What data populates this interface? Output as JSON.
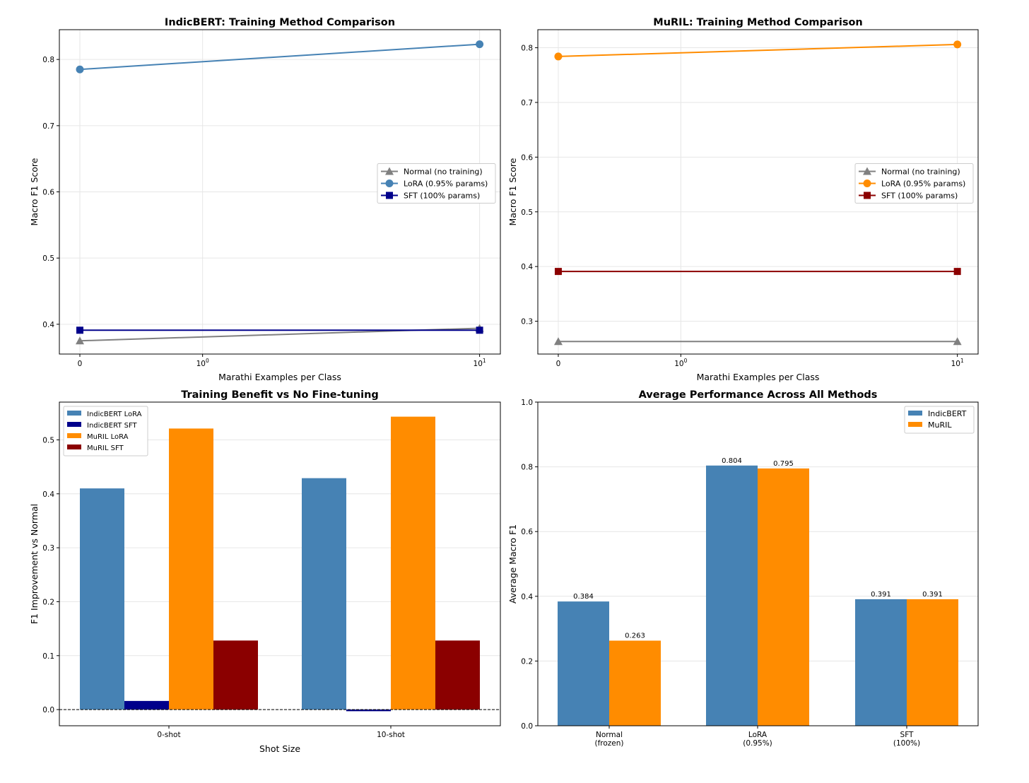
{
  "chart_data": [
    {
      "type": "line",
      "title": "IndicBERT: Training Method Comparison",
      "xlabel": "Marathi Examples per Class",
      "ylabel": "Macro F1 Score",
      "xscale": "symlog",
      "x": [
        0,
        10
      ],
      "xticks": [
        "0",
        "10^0",
        "10^1"
      ],
      "ylim": [
        0.355,
        0.845
      ],
      "yticks": [
        0.4,
        0.5,
        0.6,
        0.7,
        0.8
      ],
      "grid": true,
      "legend": "center-right",
      "series": [
        {
          "name": "Normal (no training)",
          "values": [
            0.375,
            0.394
          ],
          "color": "#808080",
          "marker": "triangle"
        },
        {
          "name": "LoRA (0.95% params)",
          "values": [
            0.785,
            0.823
          ],
          "color": "#4682b4",
          "marker": "circle"
        },
        {
          "name": "SFT (100% params)",
          "values": [
            0.391,
            0.391
          ],
          "color": "#00008b",
          "marker": "square"
        }
      ]
    },
    {
      "type": "line",
      "title": "MuRIL: Training Method Comparison",
      "xlabel": "Marathi Examples per Class",
      "ylabel": "Macro F1 Score",
      "xscale": "symlog",
      "x": [
        0,
        10
      ],
      "xticks": [
        "0",
        "10^0",
        "10^1"
      ],
      "ylim": [
        0.24,
        0.833
      ],
      "yticks": [
        0.3,
        0.4,
        0.5,
        0.6,
        0.7,
        0.8
      ],
      "grid": true,
      "legend": "center-right",
      "series": [
        {
          "name": "Normal (no training)",
          "values": [
            0.263,
            0.263
          ],
          "color": "#808080",
          "marker": "triangle"
        },
        {
          "name": "LoRA (0.95% params)",
          "values": [
            0.784,
            0.806
          ],
          "color": "#ff8c00",
          "marker": "circle"
        },
        {
          "name": "SFT (100% params)",
          "values": [
            0.391,
            0.391
          ],
          "color": "#8b0000",
          "marker": "square"
        }
      ]
    },
    {
      "type": "bar",
      "title": "Training Benefit vs No Fine-tuning",
      "xlabel": "Shot Size",
      "ylabel": "F1 Improvement vs Normal",
      "categories": [
        "0-shot",
        "10-shot"
      ],
      "ylim": [
        -0.03,
        0.57
      ],
      "yticks": [
        0.0,
        0.1,
        0.2,
        0.3,
        0.4,
        0.5
      ],
      "grid": true,
      "legend": "top-left",
      "zero_line": "dashed",
      "series": [
        {
          "name": "IndicBERT LoRA",
          "values": [
            0.41,
            0.429
          ],
          "color": "#4682b4"
        },
        {
          "name": "IndicBERT SFT",
          "values": [
            0.016,
            -0.003
          ],
          "color": "#00008b"
        },
        {
          "name": "MuRIL LoRA",
          "values": [
            0.521,
            0.543
          ],
          "color": "#ff8c00"
        },
        {
          "name": "MuRIL SFT",
          "values": [
            0.128,
            0.128
          ],
          "color": "#8b0000"
        }
      ]
    },
    {
      "type": "bar",
      "title": "Average Performance Across All Methods",
      "xlabel": "",
      "ylabel": "Average Macro F1",
      "categories": [
        "Normal\n(frozen)",
        "LoRA\n(0.95%)",
        "SFT\n(100%)"
      ],
      "ylim": [
        0,
        1.0
      ],
      "yticks": [
        0.0,
        0.2,
        0.4,
        0.6,
        0.8,
        1.0
      ],
      "grid": true,
      "legend": "top-right",
      "series": [
        {
          "name": "IndicBERT",
          "values": [
            0.384,
            0.804,
            0.391
          ],
          "labels": [
            "0.384",
            "0.804",
            "0.391"
          ],
          "color": "#4682b4"
        },
        {
          "name": "MuRIL",
          "values": [
            0.263,
            0.795,
            0.391
          ],
          "labels": [
            "0.263",
            "0.795",
            "0.391"
          ],
          "color": "#ff8c00"
        }
      ]
    }
  ]
}
